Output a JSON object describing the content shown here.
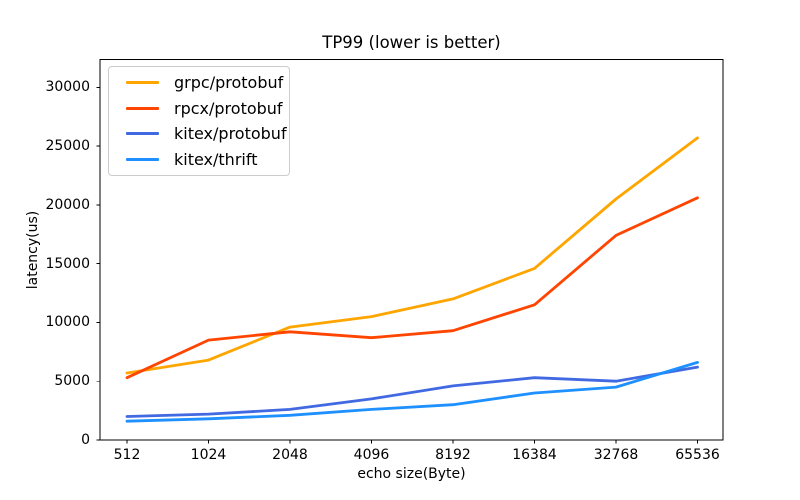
{
  "figure": {
    "background": "#ffffff",
    "spine_color": "#000000",
    "text_color": "#000000",
    "legend_border_color": "#cccccc"
  },
  "chart_data": {
    "type": "line",
    "title": "TP99 (lower is better)",
    "xlabel": "echo size(Byte)",
    "ylabel": "latency(us)",
    "categories": [
      "512",
      "1024",
      "2048",
      "4096",
      "8192",
      "16384",
      "32768",
      "65536"
    ],
    "yticks": [
      0,
      5000,
      10000,
      15000,
      20000,
      25000,
      30000
    ],
    "ylim": [
      0,
      32365
    ],
    "grid": false,
    "legend_position": "upper left",
    "series": [
      {
        "name": "grpc/protobuf",
        "color": "#FFA500",
        "values": [
          5700,
          6800,
          9600,
          10500,
          12000,
          14600,
          20500,
          25700
        ]
      },
      {
        "name": "rpcx/protobuf",
        "color": "#FF4500",
        "values": [
          5300,
          8500,
          9200,
          8700,
          9300,
          11500,
          17400,
          20600
        ]
      },
      {
        "name": "kitex/protobuf",
        "color": "#4169E1",
        "values": [
          2000,
          2200,
          2600,
          3500,
          4600,
          5300,
          5000,
          6200
        ]
      },
      {
        "name": "kitex/thrift",
        "color": "#1E90FF",
        "values": [
          1600,
          1800,
          2100,
          2600,
          3000,
          4000,
          4500,
          6600
        ]
      }
    ]
  }
}
